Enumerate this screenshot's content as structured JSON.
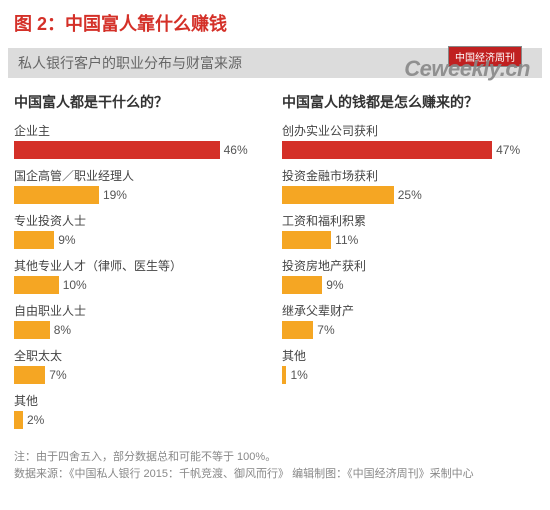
{
  "header": {
    "title": "图 2：中国富人靠什么赚钱",
    "subtitle": "私人银行客户的职业分布与财富来源",
    "logo_text": "中国经济周刊",
    "watermark": "Ceweekly.cn"
  },
  "colors": {
    "title_color": "#d43028",
    "subtitle_bg": "#dcdcdc",
    "subtitle_color": "#666666",
    "logo_bg": "#c02020",
    "bar_highlight": "#d43028",
    "bar_default": "#f5a623",
    "label_color": "#444444",
    "value_color": "#555555",
    "footer_color": "#888888",
    "background": "#ffffff"
  },
  "chart_left": {
    "title": "中国富人都是干什么的？",
    "max_pct": 50,
    "bars": [
      {
        "label": "企业主",
        "value": 46,
        "display": "46%",
        "highlight": true
      },
      {
        "label": "国企高管／职业经理人",
        "value": 19,
        "display": "19%",
        "highlight": false
      },
      {
        "label": "专业投资人士",
        "value": 9,
        "display": "9%",
        "highlight": false
      },
      {
        "label": "其他专业人才（律师、医生等）",
        "value": 10,
        "display": "10%",
        "highlight": false
      },
      {
        "label": "自由职业人士",
        "value": 8,
        "display": "8%",
        "highlight": false
      },
      {
        "label": "全职太太",
        "value": 7,
        "display": "7%",
        "highlight": false
      },
      {
        "label": "其他",
        "value": 2,
        "display": "2%",
        "highlight": false
      }
    ]
  },
  "chart_right": {
    "title": "中国富人的钱都是怎么赚来的？",
    "max_pct": 50,
    "bars": [
      {
        "label": "创办实业公司获利",
        "value": 47,
        "display": "47%",
        "highlight": true
      },
      {
        "label": "投资金融市场获利",
        "value": 25,
        "display": "25%",
        "highlight": false
      },
      {
        "label": "工资和福利积累",
        "value": 11,
        "display": "11%",
        "highlight": false
      },
      {
        "label": "投资房地产获利",
        "value": 9,
        "display": "9%",
        "highlight": false
      },
      {
        "label": "继承父辈财产",
        "value": 7,
        "display": "7%",
        "highlight": false
      },
      {
        "label": "其他",
        "value": 1,
        "display": "1%",
        "highlight": false
      }
    ]
  },
  "footer": {
    "note": "注：由于四舍五入，部分数据总和可能不等于 100%。",
    "source": "数据来源：《中国私人银行 2015：千帆竞渡、御风而行》 编辑制图：《中国经济周刊》采制中心"
  }
}
